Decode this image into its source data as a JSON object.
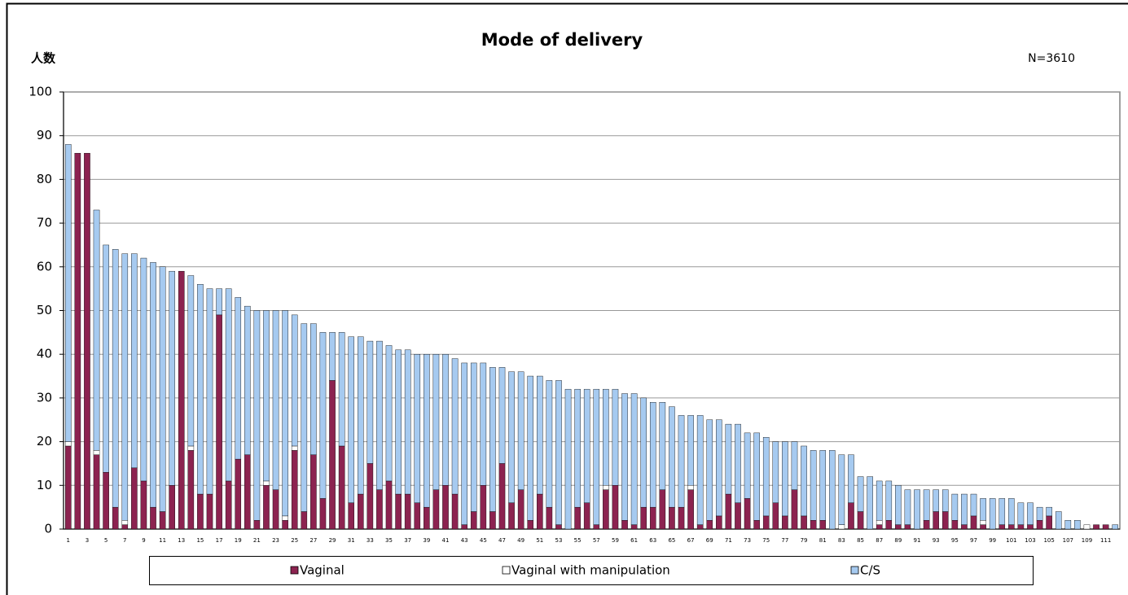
{
  "chart_data": {
    "type": "stacked_bar",
    "title": "Mode of delivery",
    "y_label": "人数",
    "annotation": "N=3610",
    "categories": [
      1,
      null,
      3,
      null,
      5,
      null,
      7,
      null,
      9,
      null,
      11,
      null,
      13,
      null,
      15,
      null,
      17,
      null,
      19,
      null,
      21,
      null,
      23,
      null,
      25,
      null,
      27,
      null,
      29,
      null,
      31,
      null,
      33,
      null,
      35,
      null,
      37,
      null,
      39,
      null,
      41,
      null,
      43,
      null,
      45,
      null,
      47,
      null,
      49,
      null,
      51,
      null,
      53,
      null,
      55,
      null,
      57,
      null,
      59,
      null,
      61,
      null,
      63,
      null,
      65,
      null,
      67,
      null,
      69,
      null,
      71,
      null,
      73,
      null,
      75,
      null,
      77,
      null,
      79,
      null,
      81,
      null,
      83,
      null,
      85,
      null,
      87,
      null,
      89,
      null,
      91,
      null,
      93,
      null,
      95,
      null,
      97,
      null,
      99,
      null,
      101,
      null,
      103,
      null,
      105,
      null,
      107,
      null,
      109,
      null,
      111,
      null
    ],
    "series": [
      {
        "name": "Vaginal",
        "color": "#8c2350",
        "values": [
          19,
          86,
          86,
          17,
          13,
          5,
          1,
          14,
          11,
          5,
          4,
          10,
          59,
          18,
          8,
          8,
          49,
          11,
          16,
          17,
          2,
          10,
          9,
          2,
          18,
          4,
          17,
          7,
          34,
          19,
          6,
          8,
          15,
          9,
          11,
          8,
          8,
          6,
          5,
          9,
          10,
          8,
          1,
          4,
          10,
          4,
          15,
          6,
          9,
          2,
          8,
          5,
          1,
          0,
          5,
          6,
          1,
          9,
          10,
          2,
          1,
          5,
          5,
          9,
          5,
          5,
          9,
          1,
          2,
          3,
          8,
          6,
          7,
          2,
          3,
          6,
          3,
          9,
          3,
          2,
          2,
          0,
          0,
          6,
          4,
          0,
          1,
          2,
          1,
          1,
          0,
          2,
          4,
          4,
          2,
          1,
          3,
          1,
          0,
          1,
          1,
          1,
          1,
          2,
          3,
          0,
          0,
          0,
          0,
          1,
          1,
          0
        ]
      },
      {
        "name": "Vaginal with manipulation",
        "color": "#ffffff",
        "values": [
          1,
          0,
          0,
          1,
          0,
          0,
          1,
          0,
          0,
          0,
          0,
          0,
          0,
          1,
          0,
          0,
          0,
          0,
          0,
          0,
          0,
          1,
          0,
          1,
          1,
          0,
          0,
          0,
          0,
          0,
          0,
          0,
          0,
          0,
          0,
          0,
          0,
          0,
          0,
          0,
          0,
          0,
          0,
          0,
          0,
          0,
          0,
          0,
          0,
          0,
          0,
          0,
          0,
          0,
          0,
          0,
          0,
          1,
          0,
          0,
          0,
          0,
          0,
          0,
          0,
          0,
          1,
          0,
          0,
          0,
          0,
          0,
          0,
          0,
          0,
          0,
          0,
          0,
          0,
          0,
          0,
          0,
          1,
          0,
          0,
          0,
          1,
          0,
          0,
          0,
          0,
          0,
          0,
          0,
          0,
          0,
          0,
          1,
          0,
          0,
          0,
          0,
          0,
          0,
          0,
          0,
          0,
          0,
          1,
          0,
          0,
          0
        ]
      },
      {
        "name": "C/S",
        "color": "#a6caf0",
        "values": [
          68,
          0,
          0,
          55,
          52,
          59,
          61,
          49,
          51,
          56,
          56,
          49,
          0,
          39,
          48,
          47,
          6,
          44,
          37,
          34,
          48,
          39,
          41,
          47,
          30,
          43,
          30,
          38,
          11,
          26,
          38,
          36,
          28,
          34,
          31,
          33,
          33,
          34,
          35,
          31,
          30,
          31,
          37,
          34,
          28,
          33,
          22,
          30,
          27,
          33,
          27,
          29,
          33,
          32,
          27,
          26,
          31,
          22,
          22,
          29,
          30,
          25,
          24,
          20,
          23,
          21,
          16,
          25,
          23,
          22,
          16,
          18,
          15,
          20,
          18,
          14,
          17,
          11,
          16,
          16,
          16,
          18,
          16,
          11,
          8,
          12,
          9,
          9,
          9,
          8,
          9,
          7,
          5,
          5,
          6,
          7,
          5,
          5,
          7,
          6,
          6,
          5,
          5,
          3,
          2,
          4,
          2,
          2,
          0,
          0,
          0,
          1
        ]
      }
    ],
    "ylim": [
      0,
      100
    ],
    "yticks": [
      0,
      10,
      20,
      30,
      40,
      50,
      60,
      70,
      80,
      90,
      100
    ],
    "grid": true
  }
}
